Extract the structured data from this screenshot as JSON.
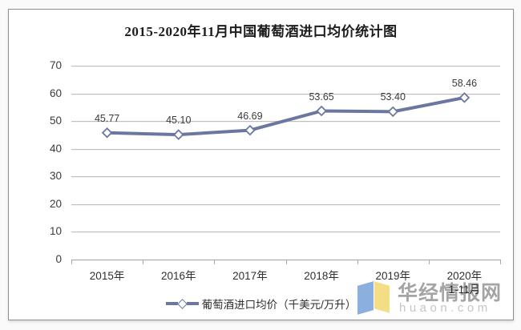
{
  "title": "2015-2020年11月中国葡萄酒进口均价统计图",
  "watermark": {
    "site_name": "华经情报网",
    "site_url": "huaon.com"
  },
  "chart_data": {
    "type": "line",
    "title": "2015-2020年11月中国葡萄酒进口均价统计图",
    "categories": [
      "2015年",
      "2016年",
      "2017年",
      "2018年",
      "2019年",
      "2020年"
    ],
    "category_sublabels": [
      "",
      "",
      "",
      "",
      "",
      "1-11月"
    ],
    "series": [
      {
        "name": "葡萄酒进口均价（千美元/万升）",
        "values": [
          45.77,
          45.1,
          46.69,
          53.65,
          53.4,
          58.46
        ]
      }
    ],
    "data_labels": [
      "45.77",
      "45.10",
      "46.69",
      "53.65",
      "53.40",
      "58.46"
    ],
    "xlabel": "",
    "ylabel": "",
    "ylim": [
      0,
      70
    ],
    "yticks": [
      "0",
      "10",
      "20",
      "30",
      "40",
      "50",
      "60",
      "70"
    ],
    "grid": "horizontal",
    "legend_position": "bottom",
    "line_color": "#6b77a0",
    "marker": "diamond",
    "marker_fill": "#ffffff",
    "label_color": "#3a3a3a"
  }
}
